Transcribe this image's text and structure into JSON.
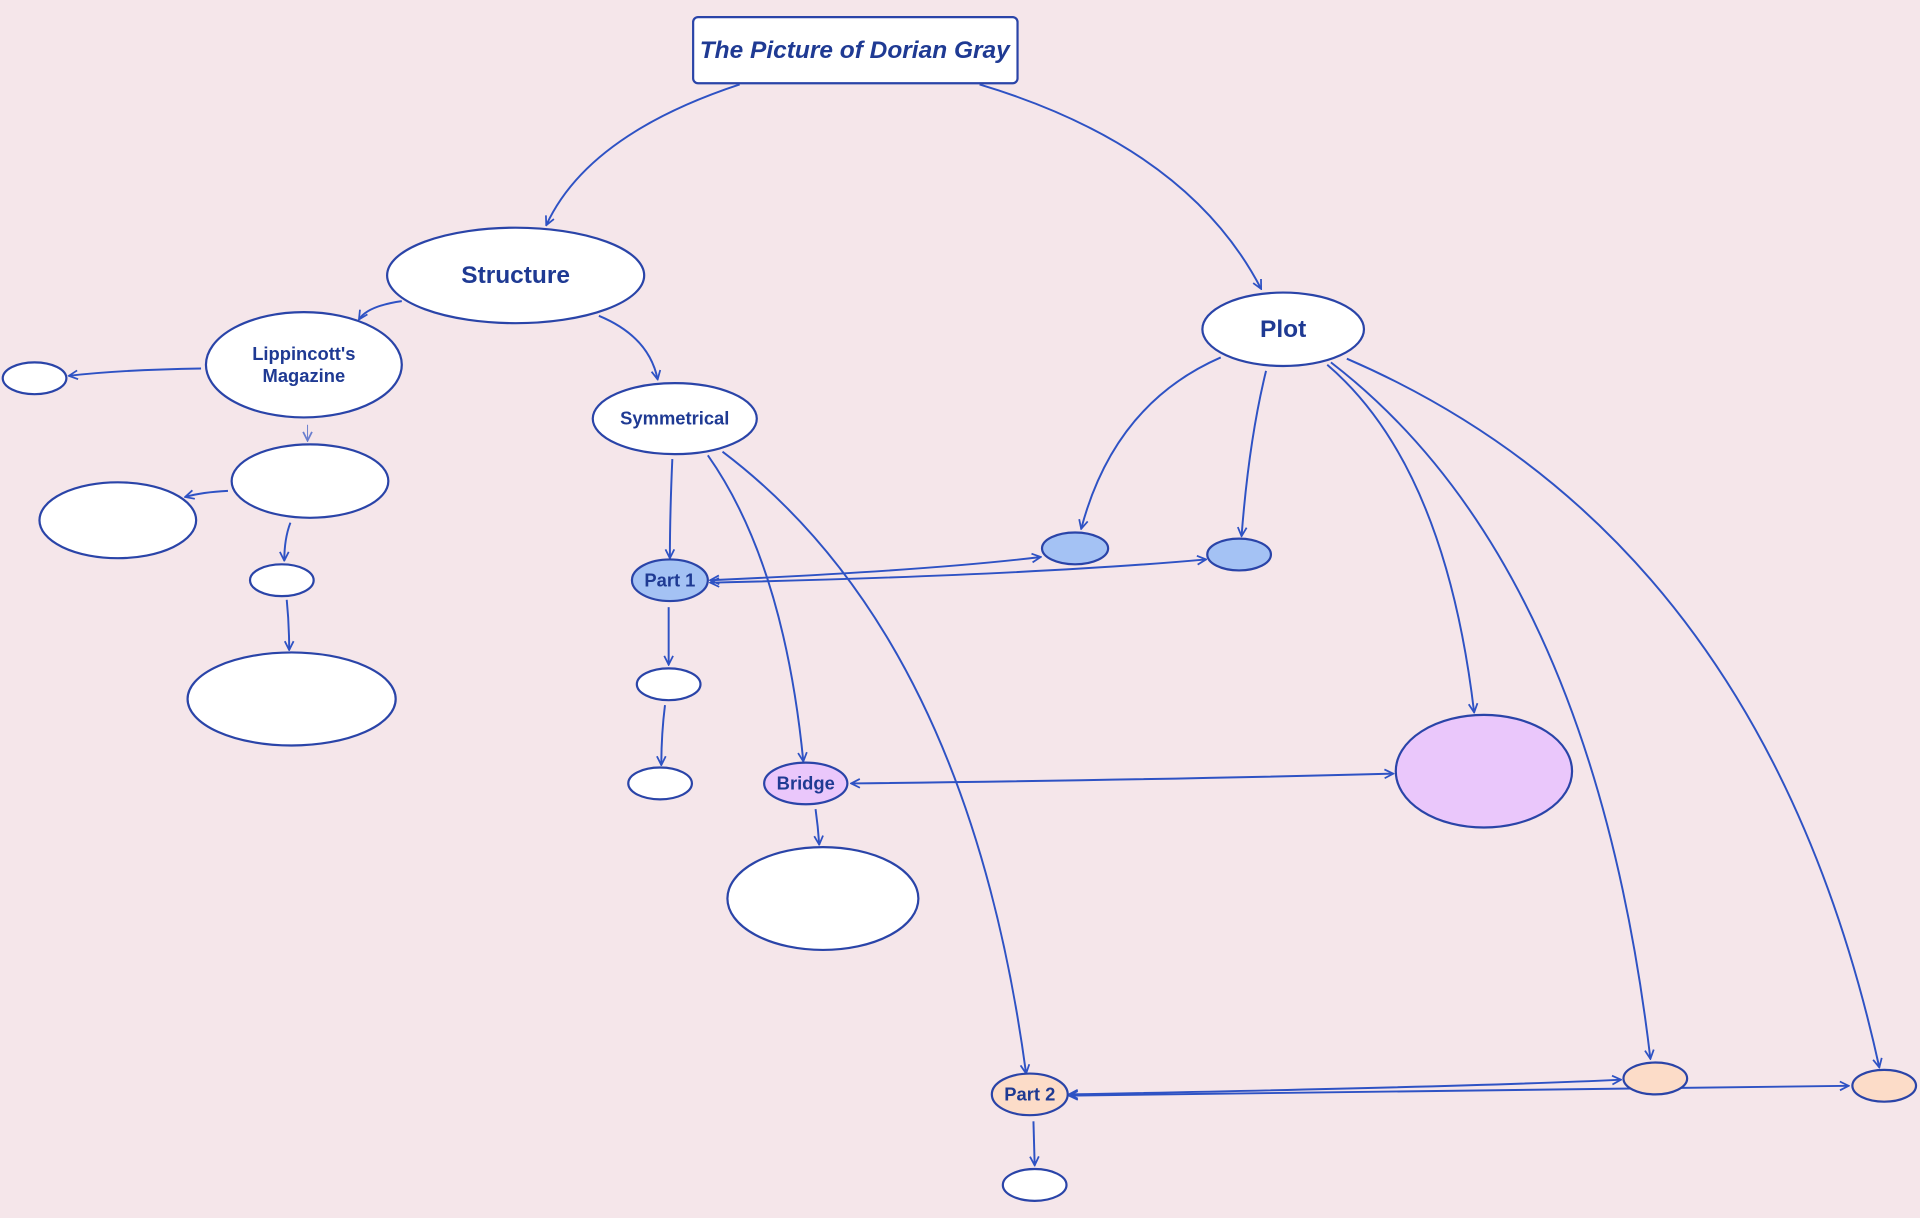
{
  "title": "The Picture of Dorian Gray",
  "nodes": {
    "structure": "Structure",
    "plot": "Plot",
    "lippincotts": "Lippincott's",
    "magazine": "Magazine",
    "symmetrical": "Symmetrical",
    "part1": "Part 1",
    "bridge": "Bridge",
    "part2": "Part 2"
  },
  "colors": {
    "background": "#f5e6ea",
    "stroke": "#2a44a8",
    "text": "#1f3a93",
    "part1_group": "#a4c2f4",
    "bridge_group": "#eac7fb",
    "part2_group": "#fcdcc8",
    "default_node": "#ffffff"
  }
}
